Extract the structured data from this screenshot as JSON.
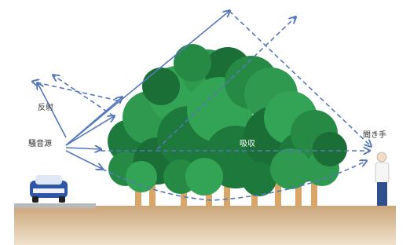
{
  "labels": {
    "reflection": "反射",
    "noise_source": "騒音源",
    "absorption": "吸収",
    "listener": "聞き手"
  }
}
